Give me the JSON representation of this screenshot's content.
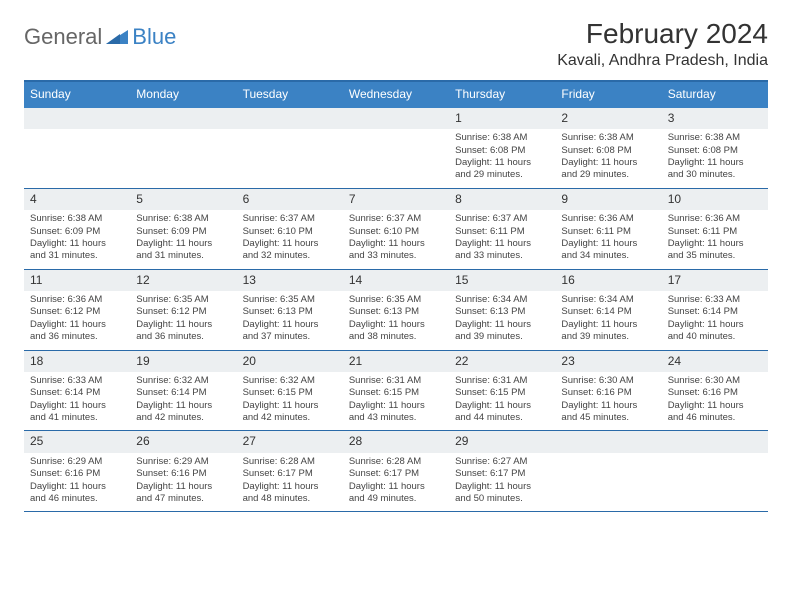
{
  "logo": {
    "text1": "General",
    "text2": "Blue"
  },
  "title": "February 2024",
  "location": "Kavali, Andhra Pradesh, India",
  "colors": {
    "header_bg": "#3b82c4",
    "rule": "#2a6aa8",
    "daynum_bg": "#eceff1"
  },
  "layout": {
    "cell_fontsize": 9.5,
    "header_fontsize": 12,
    "title_fontsize": 28
  },
  "weekdays": [
    "Sunday",
    "Monday",
    "Tuesday",
    "Wednesday",
    "Thursday",
    "Friday",
    "Saturday"
  ],
  "weeks": [
    {
      "nums": [
        "",
        "",
        "",
        "",
        "1",
        "2",
        "3"
      ],
      "cells": [
        "",
        "",
        "",
        "",
        "Sunrise: 6:38 AM\nSunset: 6:08 PM\nDaylight: 11 hours and 29 minutes.",
        "Sunrise: 6:38 AM\nSunset: 6:08 PM\nDaylight: 11 hours and 29 minutes.",
        "Sunrise: 6:38 AM\nSunset: 6:08 PM\nDaylight: 11 hours and 30 minutes."
      ]
    },
    {
      "nums": [
        "4",
        "5",
        "6",
        "7",
        "8",
        "9",
        "10"
      ],
      "cells": [
        "Sunrise: 6:38 AM\nSunset: 6:09 PM\nDaylight: 11 hours and 31 minutes.",
        "Sunrise: 6:38 AM\nSunset: 6:09 PM\nDaylight: 11 hours and 31 minutes.",
        "Sunrise: 6:37 AM\nSunset: 6:10 PM\nDaylight: 11 hours and 32 minutes.",
        "Sunrise: 6:37 AM\nSunset: 6:10 PM\nDaylight: 11 hours and 33 minutes.",
        "Sunrise: 6:37 AM\nSunset: 6:11 PM\nDaylight: 11 hours and 33 minutes.",
        "Sunrise: 6:36 AM\nSunset: 6:11 PM\nDaylight: 11 hours and 34 minutes.",
        "Sunrise: 6:36 AM\nSunset: 6:11 PM\nDaylight: 11 hours and 35 minutes."
      ]
    },
    {
      "nums": [
        "11",
        "12",
        "13",
        "14",
        "15",
        "16",
        "17"
      ],
      "cells": [
        "Sunrise: 6:36 AM\nSunset: 6:12 PM\nDaylight: 11 hours and 36 minutes.",
        "Sunrise: 6:35 AM\nSunset: 6:12 PM\nDaylight: 11 hours and 36 minutes.",
        "Sunrise: 6:35 AM\nSunset: 6:13 PM\nDaylight: 11 hours and 37 minutes.",
        "Sunrise: 6:35 AM\nSunset: 6:13 PM\nDaylight: 11 hours and 38 minutes.",
        "Sunrise: 6:34 AM\nSunset: 6:13 PM\nDaylight: 11 hours and 39 minutes.",
        "Sunrise: 6:34 AM\nSunset: 6:14 PM\nDaylight: 11 hours and 39 minutes.",
        "Sunrise: 6:33 AM\nSunset: 6:14 PM\nDaylight: 11 hours and 40 minutes."
      ]
    },
    {
      "nums": [
        "18",
        "19",
        "20",
        "21",
        "22",
        "23",
        "24"
      ],
      "cells": [
        "Sunrise: 6:33 AM\nSunset: 6:14 PM\nDaylight: 11 hours and 41 minutes.",
        "Sunrise: 6:32 AM\nSunset: 6:14 PM\nDaylight: 11 hours and 42 minutes.",
        "Sunrise: 6:32 AM\nSunset: 6:15 PM\nDaylight: 11 hours and 42 minutes.",
        "Sunrise: 6:31 AM\nSunset: 6:15 PM\nDaylight: 11 hours and 43 minutes.",
        "Sunrise: 6:31 AM\nSunset: 6:15 PM\nDaylight: 11 hours and 44 minutes.",
        "Sunrise: 6:30 AM\nSunset: 6:16 PM\nDaylight: 11 hours and 45 minutes.",
        "Sunrise: 6:30 AM\nSunset: 6:16 PM\nDaylight: 11 hours and 46 minutes."
      ]
    },
    {
      "nums": [
        "25",
        "26",
        "27",
        "28",
        "29",
        "",
        ""
      ],
      "cells": [
        "Sunrise: 6:29 AM\nSunset: 6:16 PM\nDaylight: 11 hours and 46 minutes.",
        "Sunrise: 6:29 AM\nSunset: 6:16 PM\nDaylight: 11 hours and 47 minutes.",
        "Sunrise: 6:28 AM\nSunset: 6:17 PM\nDaylight: 11 hours and 48 minutes.",
        "Sunrise: 6:28 AM\nSunset: 6:17 PM\nDaylight: 11 hours and 49 minutes.",
        "Sunrise: 6:27 AM\nSunset: 6:17 PM\nDaylight: 11 hours and 50 minutes.",
        "",
        ""
      ]
    }
  ]
}
